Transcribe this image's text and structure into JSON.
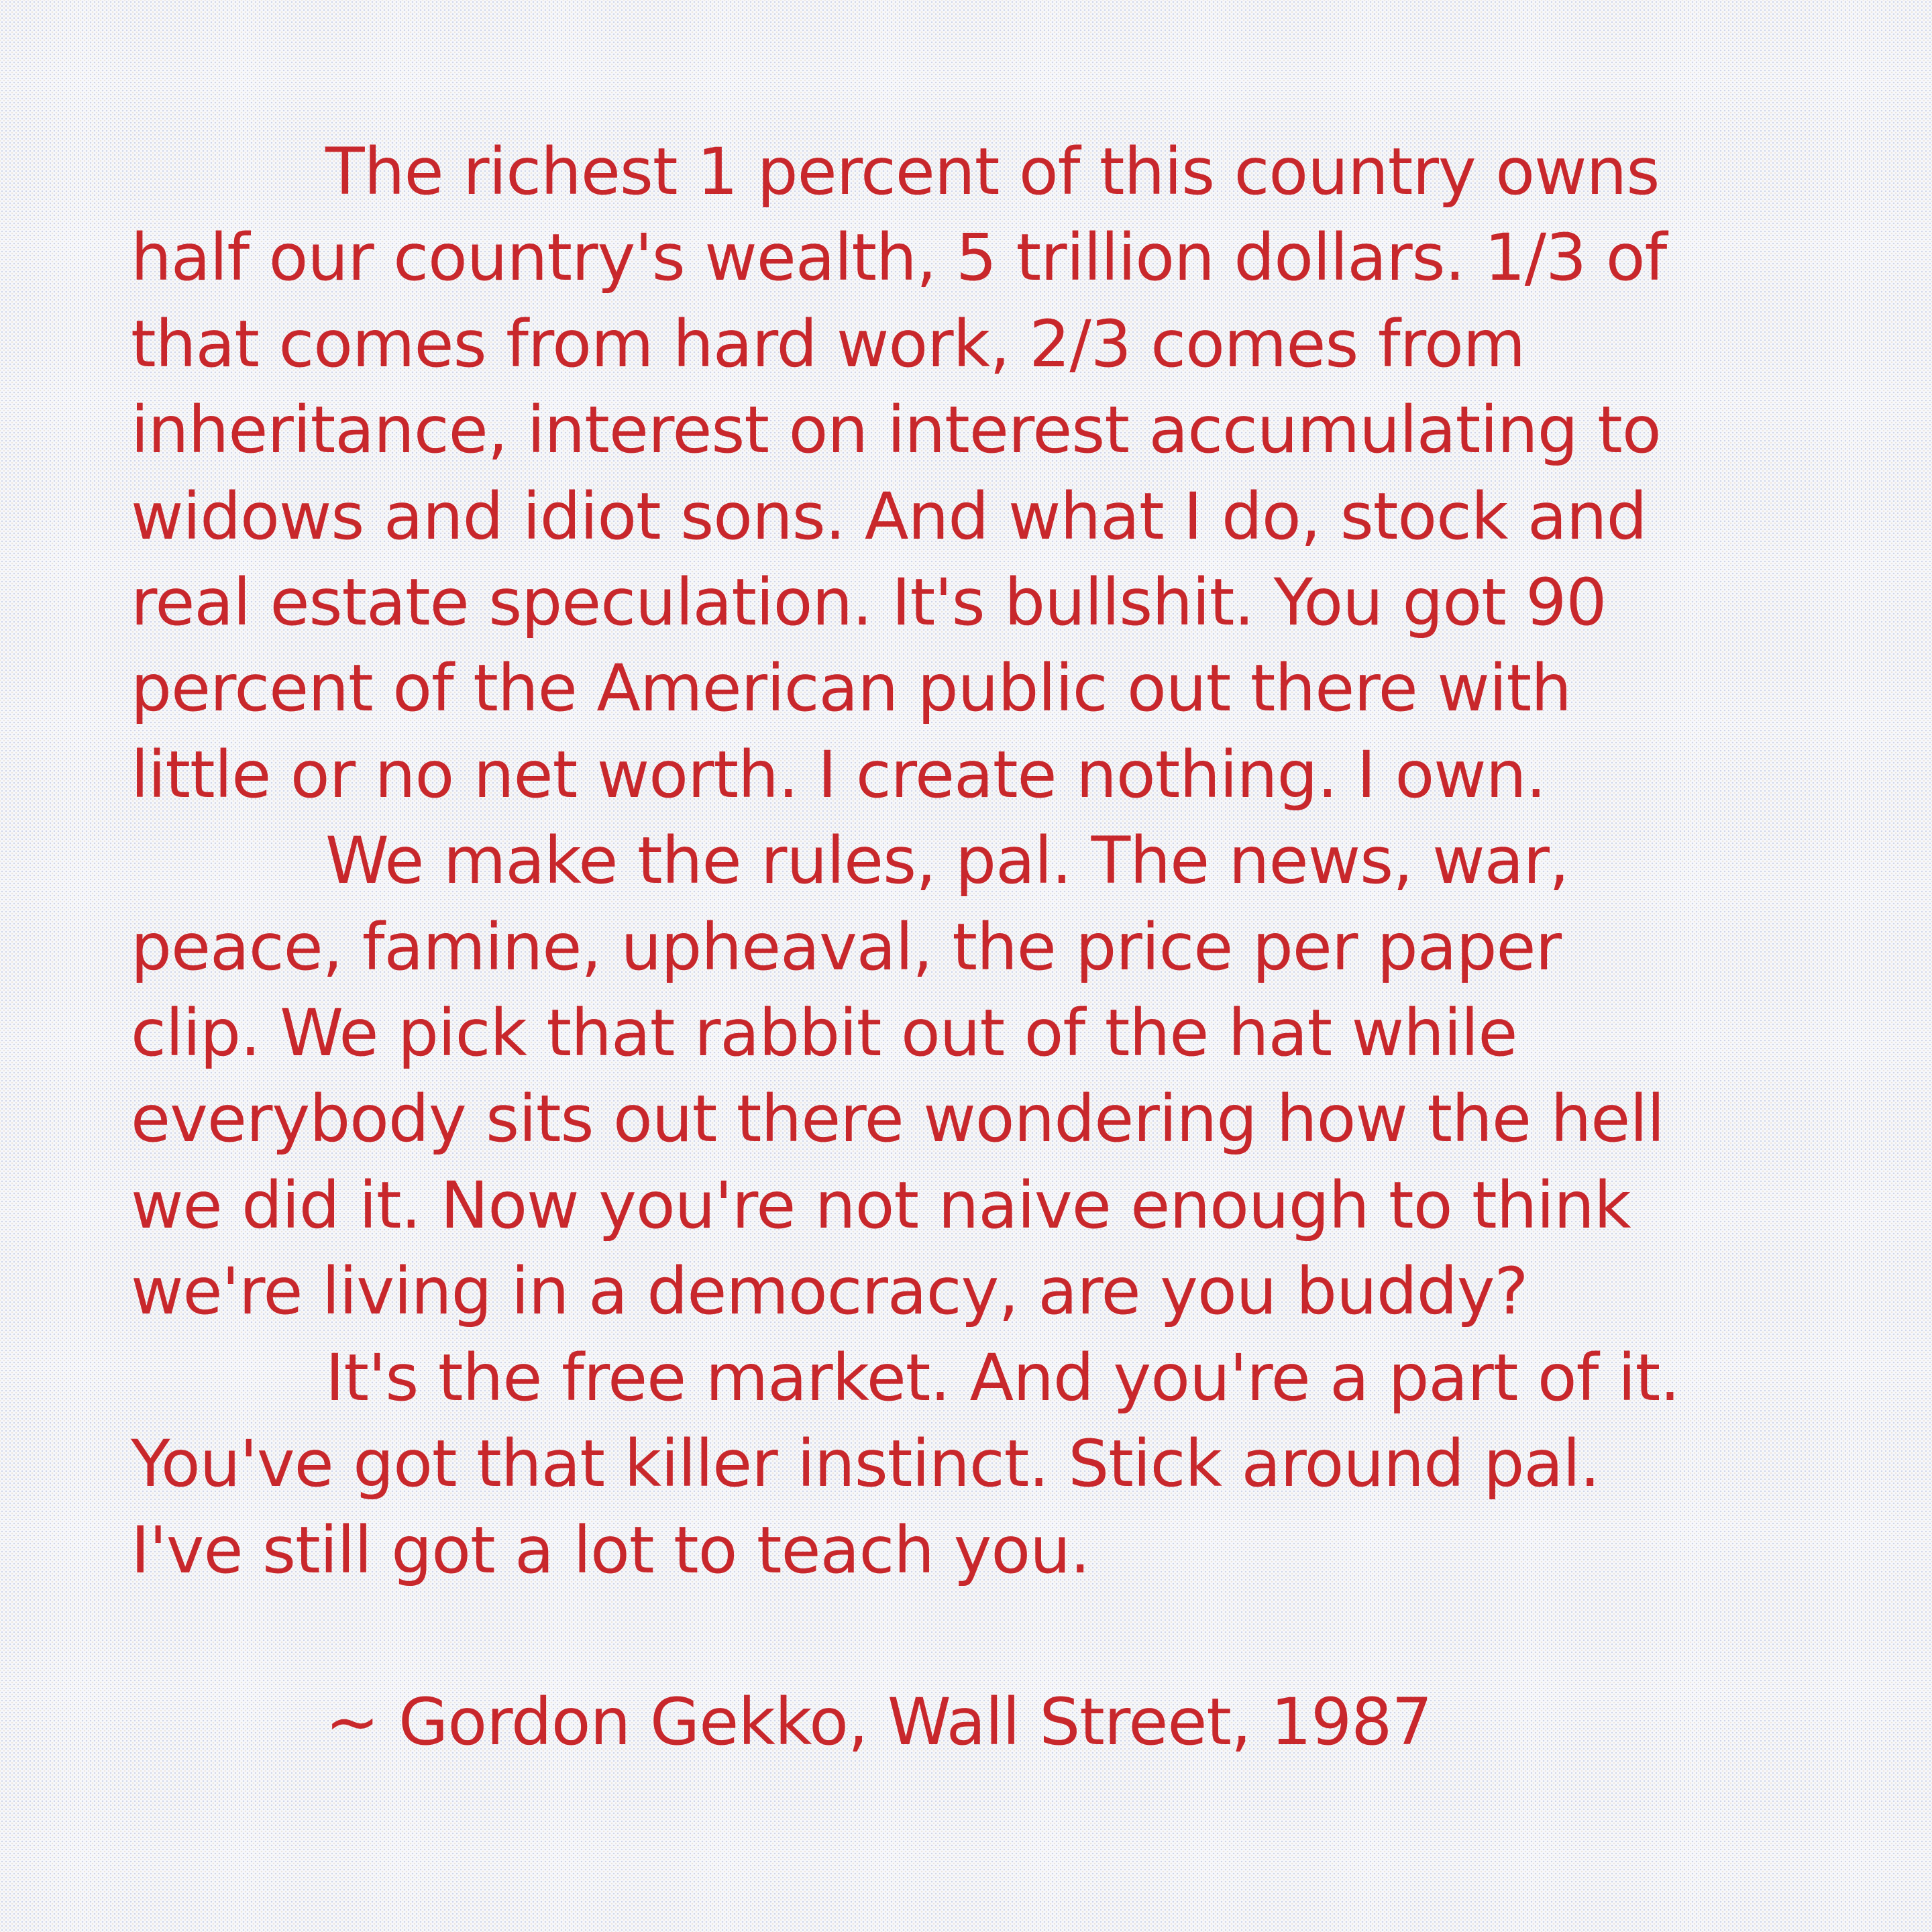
{
  "quote": {
    "paragraphs": [
      {
        "lines": [
          "The richest 1 percent of this country owns",
          "half our country's wealth, 5 trillion dollars. 1/3 of",
          "that comes from hard work, 2/3 comes from",
          "inheritance, interest on interest accumulating to",
          "widows and idiot sons. And what I do, stock and",
          "real estate speculation. It's bullshit. You got 90",
          "percent of the American public out there with",
          "little or no net worth. I create nothing. I own."
        ]
      },
      {
        "lines": [
          "We make the rules, pal. The news, war,",
          "peace, famine, upheaval, the price per paper",
          "clip. We pick that rabbit out of the hat while",
          "everybody sits out there wondering how the hell",
          "we did it. Now you're not naive enough to think",
          "we're living in a democracy, are you buddy?"
        ]
      },
      {
        "lines": [
          "It's the free market. And you're a part of it.",
          "You've got that killer instinct. Stick around pal.",
          "I've still got a lot to teach you."
        ]
      }
    ],
    "attribution": "~ Gordon Gekko, Wall Street, 1987"
  },
  "colors": {
    "text": "#c8282c",
    "background": "#f7f8fb"
  }
}
